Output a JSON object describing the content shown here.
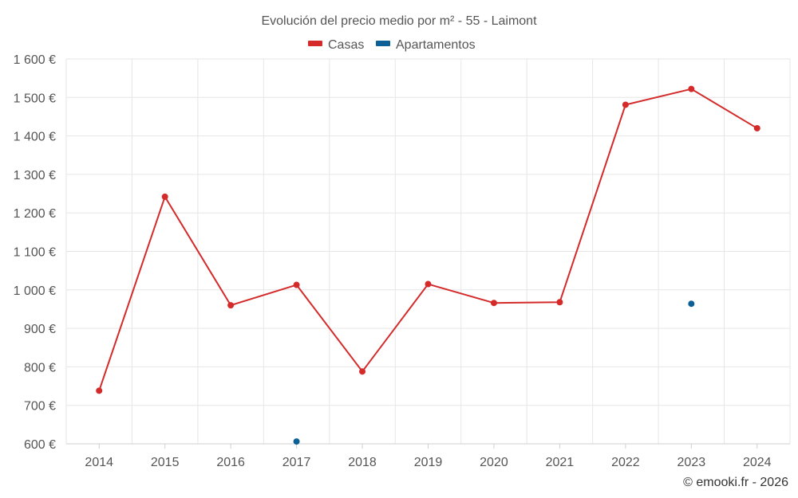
{
  "chart_data": {
    "type": "line",
    "title": "Evolución del precio medio por m² - 55 - Laimont",
    "categories": [
      "2014",
      "2015",
      "2016",
      "2017",
      "2018",
      "2019",
      "2020",
      "2021",
      "2022",
      "2023",
      "2024"
    ],
    "ylim": [
      600,
      1600
    ],
    "yticks": [
      600,
      700,
      800,
      900,
      1000,
      1100,
      1200,
      1300,
      1400,
      1500,
      1600
    ],
    "ytick_labels": [
      "600 €",
      "700 €",
      "800 €",
      "900 €",
      "1 000 €",
      "1 100 €",
      "1 200 €",
      "1 300 €",
      "1 400 €",
      "1 500 €",
      "1 600 €"
    ],
    "grid": true,
    "legend_position": "top-center",
    "series": [
      {
        "name": "Casas",
        "color": "#d42a2a",
        "values": [
          738,
          1242,
          960,
          1013,
          788,
          1015,
          966,
          968,
          1481,
          1522,
          1420
        ]
      },
      {
        "name": "Apartamentos",
        "color": "#0d6096",
        "values": [
          null,
          null,
          null,
          606,
          null,
          null,
          null,
          null,
          null,
          964,
          null
        ]
      }
    ]
  },
  "credit": "© emooki.fr - 2026"
}
